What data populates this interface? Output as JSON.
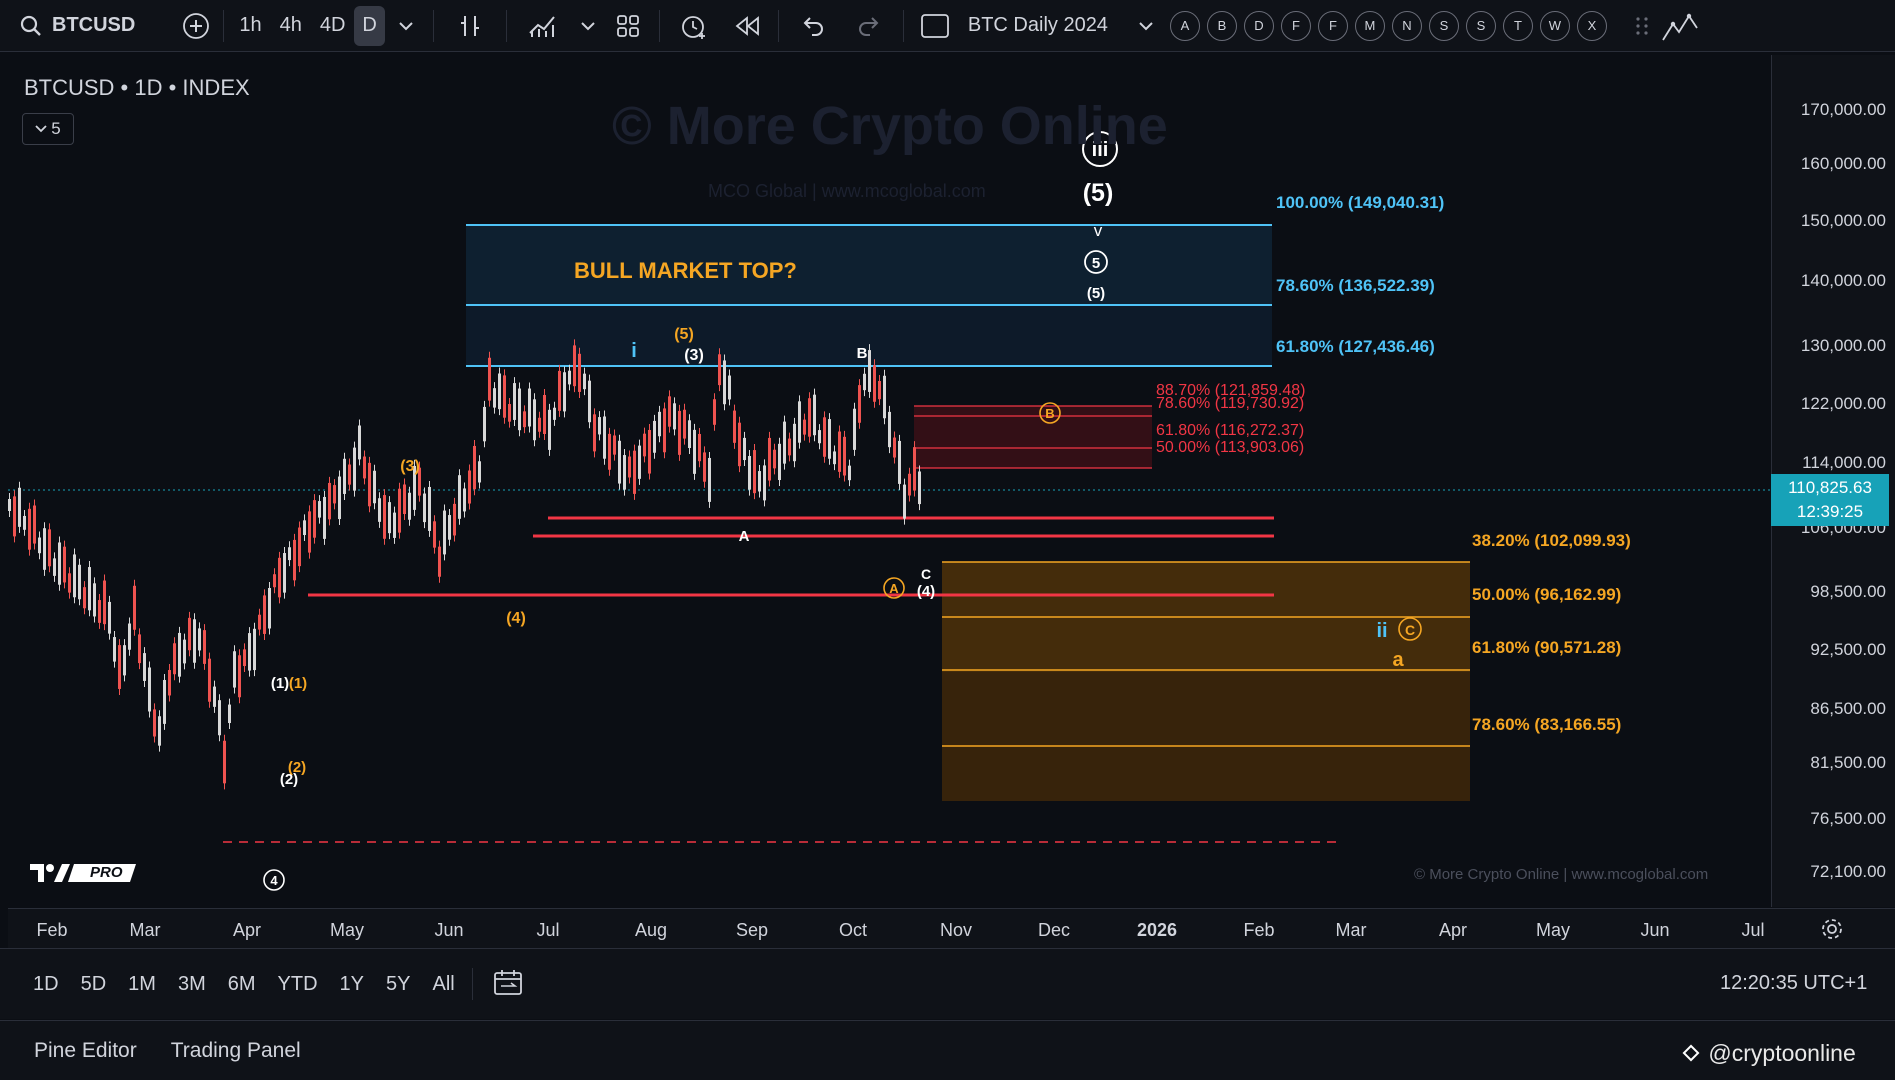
{
  "toolbar": {
    "symbol": "BTCUSD",
    "intervals": [
      "1h",
      "4h",
      "4D",
      "D"
    ],
    "active_interval": "D",
    "layout_name": "BTC Daily 2024",
    "alert_letters": [
      "A",
      "B",
      "D",
      "F",
      "F",
      "M",
      "N",
      "S",
      "S",
      "T",
      "W",
      "X"
    ]
  },
  "chart": {
    "title": "BTCUSD • 1D • INDEX",
    "legend_count": "5",
    "watermark": "© More Crypto Online",
    "watermark_sub": "MCO Global  |  www.mcoglobal.com",
    "credit": "© More Crypto Online  |  www.mcoglobal.com",
    "logo_text": "PRO",
    "current_price": "110,825.63",
    "countdown": "12:39:25",
    "bull_top_label": "BULL MARKET TOP?",
    "colors": {
      "accent": "#17a2b8",
      "red_line": "#f23645",
      "orange": "#f5a623",
      "blue_zone": "#4fc3f7",
      "bg": "#0b0e14"
    }
  },
  "price_axis": [
    "170,000.00",
    "160,000.00",
    "150,000.00",
    "140,000.00",
    "130,000.00",
    "122,000.00",
    "114,000.00",
    "106,000.00",
    "98,500.00",
    "92,500.00",
    "86,500.00",
    "81,500.00",
    "76,500.00",
    "72,100.00"
  ],
  "time_axis": [
    "Feb",
    "Mar",
    "Apr",
    "May",
    "Jun",
    "Jul",
    "Aug",
    "Sep",
    "Oct",
    "Nov",
    "Dec",
    "2026",
    "Feb",
    "Mar",
    "Apr",
    "May",
    "Jun",
    "Jul"
  ],
  "fib_blue": [
    {
      "label": "100.00% (149,040.31)"
    },
    {
      "label": "78.60% (136,522.39)"
    },
    {
      "label": "61.80% (127,436.46)"
    }
  ],
  "fib_red": [
    {
      "label": "88.70% (121,859.48)"
    },
    {
      "label": "78.60% (119,730.92)"
    },
    {
      "label": "61.80% (116,272.37)"
    },
    {
      "label": "50.00% (113,903.06)"
    }
  ],
  "fib_orange": [
    {
      "label": "38.20% (102,099.93)"
    },
    {
      "label": "50.00% (96,162.99)"
    },
    {
      "label": "61.80% (90,571.28)"
    },
    {
      "label": "78.60% (83,166.55)"
    }
  ],
  "wave_labels": {
    "iii": "iii",
    "five_big": "(5)",
    "v": "v",
    "five_circ": "5",
    "five_small": "(5)",
    "i": "i",
    "five_orange": "(5)",
    "three_white": "(3)",
    "b_white": "B",
    "three_orange": "(3)",
    "a_white": "A",
    "b_circ": "B",
    "four_orange": "(4)",
    "a_circ": "A",
    "c_white": "C",
    "four_white": "(4)",
    "ii": "ii",
    "c_circ": "C",
    "a_orange": "a",
    "one_white": "(1)",
    "one_orange": "(1)",
    "two_orange": "(2)",
    "two_white": "(2)",
    "four_circ": "4"
  },
  "ranges": [
    "1D",
    "5D",
    "1M",
    "3M",
    "6M",
    "YTD",
    "1Y",
    "5Y",
    "All"
  ],
  "clock": "12:20:35 UTC+1",
  "panels": [
    "Pine Editor",
    "Trading Panel"
  ],
  "social": "@cryptoonline"
}
